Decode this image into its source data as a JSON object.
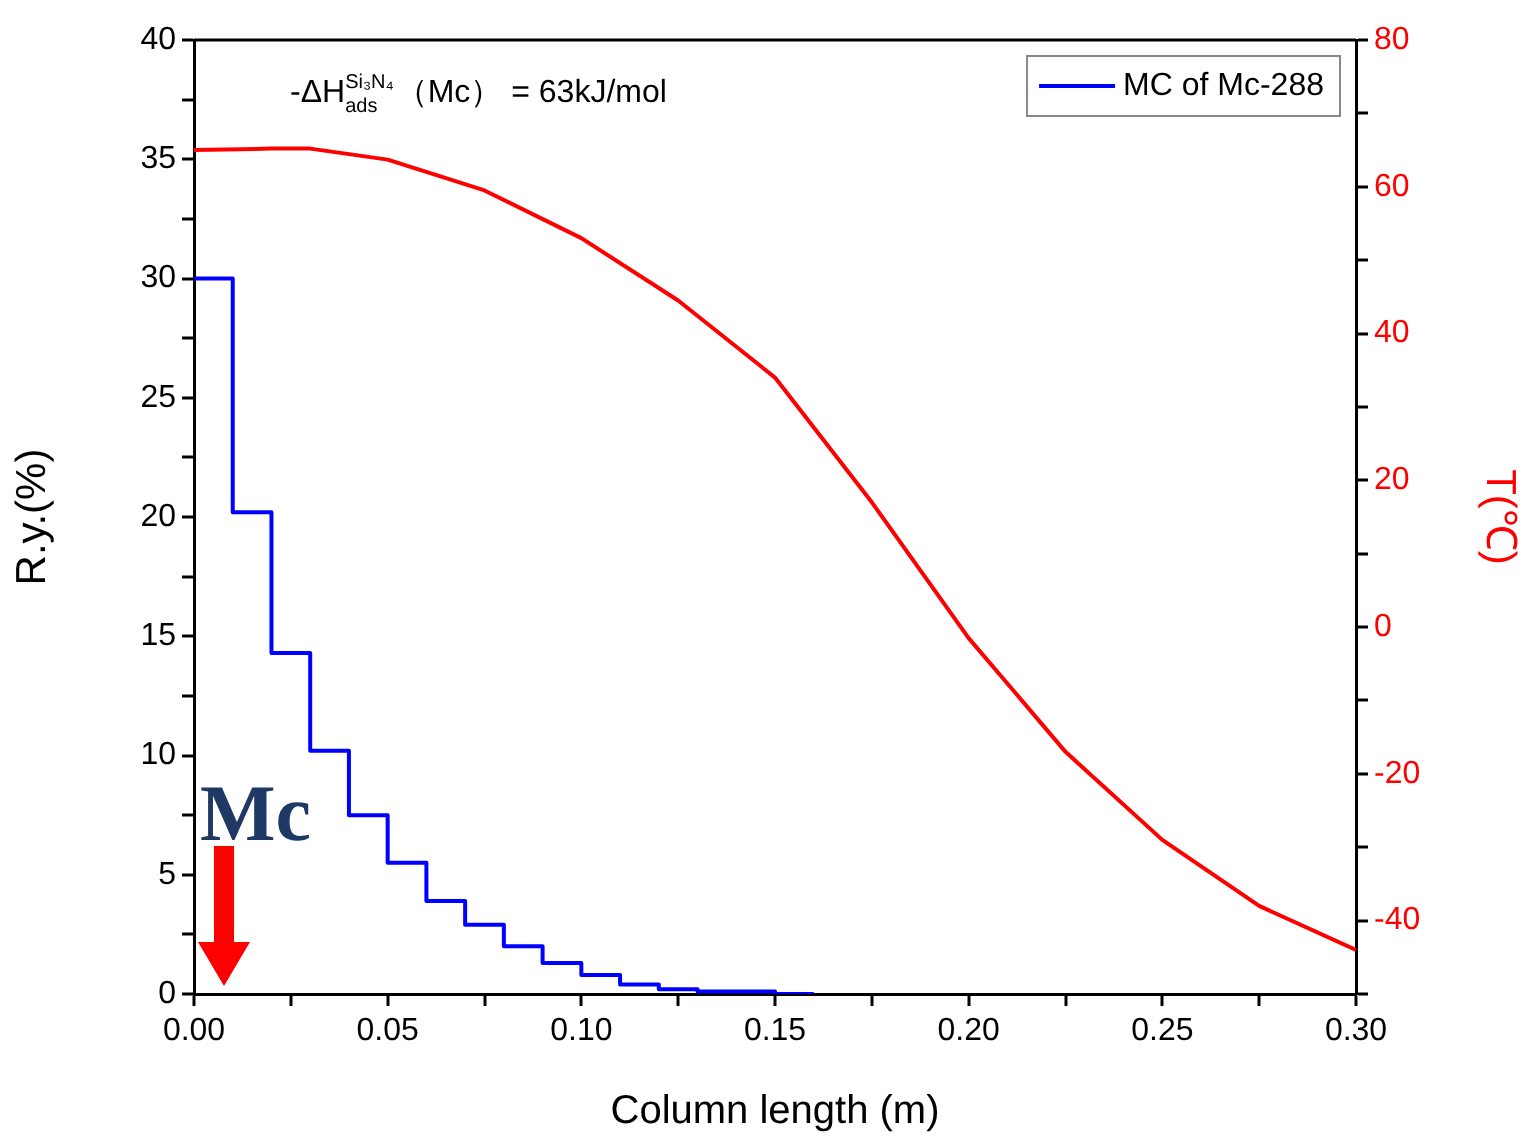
{
  "chart_data": {
    "type": "line",
    "xlabel": "Column length (m)",
    "ylabel": "R.y.(%)",
    "y2label": "T(℃)",
    "annotations": [
      "-ΔH$^{Si₃N₄}$$_{ads}$（Mc） = 63kJ/mol",
      "Mc"
    ],
    "series": [
      {
        "type": "step",
        "name": "MC of Mc-288",
        "color": "#0000ff",
        "x": [
          0,
          0.01,
          0.02,
          0.03,
          0.04,
          0.05,
          0.06,
          0.07,
          0.08,
          0.09,
          0.1,
          0.11,
          0.12,
          0.13,
          0.14,
          0.15,
          0.16
        ],
        "values": [
          30,
          20.2,
          14.3,
          10.2,
          7.5,
          5.5,
          3.9,
          2.9,
          2.0,
          1.3,
          0.8,
          0.4,
          0.2,
          0.1,
          0.1,
          0,
          0
        ]
      },
      {
        "type": "line",
        "axis": "y2",
        "color": "#ff0000",
        "x": [
          0,
          0.02,
          0.03,
          0.05,
          0.075,
          0.1,
          0.125,
          0.15,
          0.175,
          0.2,
          0.225,
          0.25,
          0.275,
          0.3
        ],
        "values": [
          65,
          65.2,
          65.2,
          63.7,
          59.5,
          53,
          44.5,
          34,
          17,
          -1.5,
          -17,
          -29,
          -38,
          -44
        ]
      }
    ],
    "xlim": [
      0,
      0.3
    ],
    "xticks": [
      {
        "value": 0,
        "label": "0.00"
      },
      {
        "value": 0.025,
        "label": null
      },
      {
        "value": 0.05,
        "label": "0.05"
      },
      {
        "value": 0.075,
        "label": null
      },
      {
        "value": 0.1,
        "label": "0.10"
      },
      {
        "value": 0.125,
        "label": null
      },
      {
        "value": 0.15,
        "label": "0.15"
      },
      {
        "value": 0.175,
        "label": null
      },
      {
        "value": 0.2,
        "label": "0.20"
      },
      {
        "value": 0.225,
        "label": null
      },
      {
        "value": 0.25,
        "label": "0.25"
      },
      {
        "value": 0.275,
        "label": null
      },
      {
        "value": 0.3,
        "label": "0.30"
      }
    ],
    "ylim": [
      0,
      40
    ],
    "yticks": [
      0,
      {
        "value": 2.5,
        "label": null
      },
      5,
      {
        "value": 7.5,
        "label": null
      },
      10,
      {
        "value": 12.5,
        "label": null
      },
      15,
      {
        "value": 17.5,
        "label": null
      },
      20,
      {
        "value": 22.5,
        "label": null
      },
      25,
      {
        "value": 27.5,
        "label": null
      },
      30,
      {
        "value": 32.5,
        "label": null
      },
      35,
      {
        "value": 37.5,
        "label": null
      },
      40
    ],
    "y2lim": [
      -50,
      80
    ],
    "y2ticks": [
      {
        "value": -50,
        "label": null
      },
      -40,
      {
        "value": -30,
        "label": null
      },
      -20,
      {
        "value": -10,
        "label": null
      },
      0,
      {
        "value": 10,
        "label": null
      },
      20,
      {
        "value": 30,
        "label": null
      },
      40,
      {
        "value": 50,
        "label": null
      },
      60,
      {
        "value": 70,
        "label": null
      },
      80
    ],
    "grid": false,
    "legend": "top right",
    "marker": "none"
  }
}
